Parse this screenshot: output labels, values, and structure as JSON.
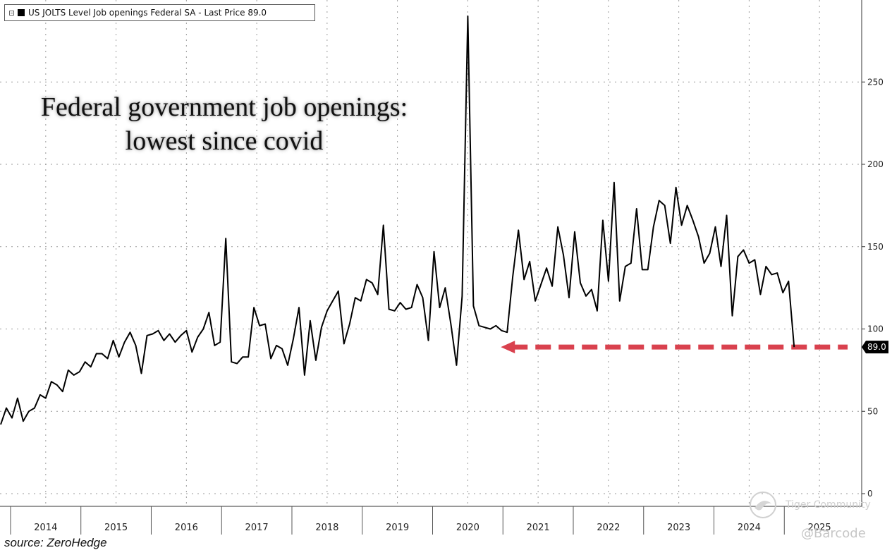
{
  "chart_data": {
    "type": "line",
    "legend_text": "US JOLTS Level Job openings Federal SA - Last Price 89.0",
    "annotation": "Federal government job openings: lowest since covid",
    "source": "source: ZeroHedge",
    "ylim": [
      0,
      300
    ],
    "yticks": [
      0,
      50,
      100,
      150,
      200,
      250
    ],
    "ytick_labels": [
      "0",
      "50",
      "100",
      "150",
      "200",
      "250"
    ],
    "x_start": 2013.35,
    "x_end": 2025.6,
    "x_ticks": [
      2013.5,
      2014.5,
      2015.5,
      2016.5,
      2017.5,
      2018.5,
      2019.5,
      2020.5,
      2021.5,
      2022.5,
      2023.5,
      2024.5
    ],
    "x_labels": [
      {
        "text": "2014",
        "x": 2014
      },
      {
        "text": "2015",
        "x": 2015
      },
      {
        "text": "2016",
        "x": 2016
      },
      {
        "text": "2017",
        "x": 2017
      },
      {
        "text": "2018",
        "x": 2018
      },
      {
        "text": "2019",
        "x": 2019
      },
      {
        "text": "2020",
        "x": 2020
      },
      {
        "text": "2021",
        "x": 2021
      },
      {
        "text": "2022",
        "x": 2022
      },
      {
        "text": "2023",
        "x": 2023
      },
      {
        "text": "2024",
        "x": 2024
      },
      {
        "text": "2025",
        "x": 2025
      }
    ],
    "last_value": 89.0,
    "last_value_label": "89.0",
    "reference_line": {
      "value": 89,
      "from": 2020.47,
      "to": 2025.4,
      "color": "#d9414e"
    },
    "line_color": "#000000",
    "series": [
      {
        "name": "US JOLTS Level Job openings Federal SA",
        "points": [
          [
            2013.36,
            42
          ],
          [
            2013.44,
            52
          ],
          [
            2013.52,
            46
          ],
          [
            2013.6,
            58
          ],
          [
            2013.68,
            44
          ],
          [
            2013.76,
            50
          ],
          [
            2013.84,
            52
          ],
          [
            2013.92,
            60
          ],
          [
            2014.0,
            58
          ],
          [
            2014.08,
            68
          ],
          [
            2014.16,
            66
          ],
          [
            2014.24,
            62
          ],
          [
            2014.32,
            75
          ],
          [
            2014.4,
            72
          ],
          [
            2014.48,
            74
          ],
          [
            2014.56,
            80
          ],
          [
            2014.64,
            77
          ],
          [
            2014.72,
            85
          ],
          [
            2014.8,
            85
          ],
          [
            2014.88,
            82
          ],
          [
            2014.96,
            93
          ],
          [
            2015.04,
            83
          ],
          [
            2015.12,
            92
          ],
          [
            2015.2,
            98
          ],
          [
            2015.28,
            90
          ],
          [
            2015.36,
            73
          ],
          [
            2015.44,
            96
          ],
          [
            2015.52,
            97
          ],
          [
            2015.6,
            99
          ],
          [
            2015.68,
            93
          ],
          [
            2015.76,
            97
          ],
          [
            2015.84,
            92
          ],
          [
            2015.92,
            96
          ],
          [
            2016.0,
            99
          ],
          [
            2016.08,
            86
          ],
          [
            2016.16,
            95
          ],
          [
            2016.24,
            100
          ],
          [
            2016.32,
            110
          ],
          [
            2016.4,
            90
          ],
          [
            2016.48,
            92
          ],
          [
            2016.56,
            155
          ],
          [
            2016.64,
            80
          ],
          [
            2016.72,
            79
          ],
          [
            2016.8,
            83
          ],
          [
            2016.88,
            83
          ],
          [
            2016.96,
            113
          ],
          [
            2017.04,
            102
          ],
          [
            2017.12,
            103
          ],
          [
            2017.2,
            82
          ],
          [
            2017.28,
            90
          ],
          [
            2017.36,
            88
          ],
          [
            2017.44,
            78
          ],
          [
            2017.52,
            94
          ],
          [
            2017.6,
            113
          ],
          [
            2017.68,
            72
          ],
          [
            2017.76,
            105
          ],
          [
            2017.84,
            81
          ],
          [
            2017.92,
            101
          ],
          [
            2018.0,
            111
          ],
          [
            2018.08,
            117
          ],
          [
            2018.16,
            123
          ],
          [
            2018.24,
            91
          ],
          [
            2018.32,
            103
          ],
          [
            2018.4,
            119
          ],
          [
            2018.48,
            117
          ],
          [
            2018.56,
            130
          ],
          [
            2018.64,
            128
          ],
          [
            2018.72,
            121
          ],
          [
            2018.8,
            163
          ],
          [
            2018.88,
            112
          ],
          [
            2018.96,
            111
          ],
          [
            2019.04,
            116
          ],
          [
            2019.12,
            112
          ],
          [
            2019.2,
            113
          ],
          [
            2019.28,
            127
          ],
          [
            2019.36,
            119
          ],
          [
            2019.44,
            93
          ],
          [
            2019.52,
            147
          ],
          [
            2019.6,
            113
          ],
          [
            2019.68,
            125
          ],
          [
            2019.76,
            103
          ],
          [
            2019.84,
            78
          ],
          [
            2019.92,
            120
          ],
          [
            2020.0,
            290
          ],
          [
            2020.08,
            114
          ],
          [
            2020.16,
            102
          ],
          [
            2020.24,
            101
          ],
          [
            2020.32,
            100
          ],
          [
            2020.4,
            102
          ],
          [
            2020.48,
            99
          ],
          [
            2020.56,
            98
          ],
          [
            2020.64,
            132
          ],
          [
            2020.72,
            160
          ],
          [
            2020.8,
            130
          ],
          [
            2020.88,
            141
          ],
          [
            2020.96,
            117
          ],
          [
            2021.04,
            127
          ],
          [
            2021.12,
            137
          ],
          [
            2021.2,
            126
          ],
          [
            2021.28,
            162
          ],
          [
            2021.36,
            145
          ],
          [
            2021.44,
            119
          ],
          [
            2021.52,
            159
          ],
          [
            2021.6,
            128
          ],
          [
            2021.68,
            120
          ],
          [
            2021.76,
            124
          ],
          [
            2021.84,
            111
          ],
          [
            2021.92,
            166
          ],
          [
            2022.0,
            129
          ],
          [
            2022.08,
            189
          ],
          [
            2022.16,
            117
          ],
          [
            2022.24,
            138
          ],
          [
            2022.32,
            140
          ],
          [
            2022.4,
            173
          ],
          [
            2022.48,
            136
          ],
          [
            2022.56,
            136
          ],
          [
            2022.64,
            162
          ],
          [
            2022.72,
            178
          ],
          [
            2022.8,
            175
          ],
          [
            2022.88,
            152
          ],
          [
            2022.96,
            186
          ],
          [
            2023.04,
            163
          ],
          [
            2023.12,
            175
          ],
          [
            2023.2,
            166
          ],
          [
            2023.28,
            156
          ],
          [
            2023.36,
            140
          ],
          [
            2023.44,
            146
          ],
          [
            2023.52,
            162
          ],
          [
            2023.6,
            138
          ],
          [
            2023.68,
            169
          ],
          [
            2023.76,
            108
          ],
          [
            2023.84,
            144
          ],
          [
            2023.92,
            148
          ],
          [
            2024.0,
            140
          ],
          [
            2024.08,
            142
          ],
          [
            2024.16,
            121
          ],
          [
            2024.24,
            138
          ],
          [
            2024.32,
            133
          ],
          [
            2024.4,
            134
          ],
          [
            2024.48,
            122
          ],
          [
            2024.56,
            129
          ],
          [
            2024.64,
            89
          ]
        ]
      }
    ]
  },
  "watermark": {
    "community": "Tiger Community",
    "handle": "@Barcode"
  }
}
